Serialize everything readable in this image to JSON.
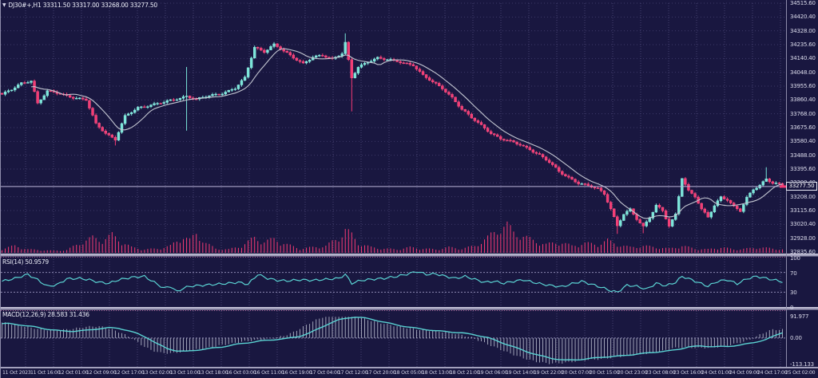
{
  "window": {
    "symbol_info": "DJ30#+,H1  33311.50 33317.00 33268.00 33277.50"
  },
  "panels": {
    "rsi": {
      "label": "RSI(14) 50.9579",
      "axis_labels": [
        "100",
        "70",
        "30",
        "0"
      ]
    },
    "macd": {
      "label": "MACD(12,26,9) 28.583 31.436",
      "axis_labels": [
        "91.977",
        "0.00",
        "-113.133"
      ]
    }
  },
  "price_axis": {
    "labels": [
      "34515.60",
      "34420.40",
      "34328.00",
      "34235.60",
      "34140.40",
      "34048.00",
      "33955.60",
      "33860.40",
      "33768.00",
      "33675.60",
      "33580.40",
      "33488.00",
      "33395.60",
      "33300.40",
      "33208.00",
      "33115.60",
      "33020.40",
      "32928.00",
      "32835.60"
    ],
    "current_price_label": "33277.50"
  },
  "time_axis": {
    "labels": [
      "11 Oct 2023",
      "11 Oct 16:00",
      "12 Oct 01:00",
      "12 Oct 09:00",
      "12 Oct 17:00",
      "13 Oct 02:00",
      "13 Oct 10:00",
      "13 Oct 18:00",
      "16 Oct 03:00",
      "16 Oct 11:00",
      "16 Oct 19:00",
      "17 Oct 04:00",
      "17 Oct 12:00",
      "17 Oct 20:00",
      "18 Oct 05:00",
      "18 Oct 13:00",
      "18 Oct 21:00",
      "19 Oct 06:00",
      "19 Oct 14:00",
      "19 Oct 22:00",
      "20 Oct 07:00",
      "20 Oct 15:00",
      "20 Oct 23:00",
      "23 Oct 08:00",
      "23 Oct 16:00",
      "24 Oct 01:00",
      "24 Oct 09:00",
      "24 Oct 17:00",
      "25 Oct 02:00"
    ]
  },
  "colors": {
    "background": "#191740",
    "grid": "#454070",
    "grid_dot": "#3d3868",
    "candle_up": "#7ae6da",
    "candle_up_stroke": "#97efe5",
    "candle_down": "#f43b74",
    "candle_down_stroke": "#ff5c8d",
    "ma_line": "#c4c7d2",
    "indicator_line": "#5ad2d2",
    "histogram": "#b0b3c6",
    "volume": "#f43b74",
    "text": "#e8e8f4",
    "current_price_line": "#bdb5d9",
    "subpanel_border_dots": "#a0568f",
    "level_dash": "#8d89b2"
  },
  "chart_data": {
    "type": "candlestick",
    "symbol": "DJ30#+",
    "timeframe": "H1",
    "title": "DJ30#+,H1",
    "ohlc_current": {
      "open": 33311.5,
      "high": 33317.0,
      "low": 33268.0,
      "close": 33277.5
    },
    "current_price": 33277.5,
    "price_range": [
      32835.6,
      34515.6
    ],
    "candle_count": 242,
    "close_keyframes": [
      [
        0,
        33900
      ],
      [
        3,
        33930
      ],
      [
        6,
        33975
      ],
      [
        9,
        33995
      ],
      [
        11,
        33840
      ],
      [
        14,
        33920
      ],
      [
        18,
        33905
      ],
      [
        22,
        33880
      ],
      [
        26,
        33860
      ],
      [
        29,
        33700
      ],
      [
        32,
        33640
      ],
      [
        35,
        33595
      ],
      [
        38,
        33750
      ],
      [
        42,
        33810
      ],
      [
        46,
        33830
      ],
      [
        50,
        33845
      ],
      [
        54,
        33870
      ],
      [
        57,
        33890
      ],
      [
        60,
        33865
      ],
      [
        64,
        33890
      ],
      [
        68,
        33910
      ],
      [
        72,
        33940
      ],
      [
        75,
        34010
      ],
      [
        78,
        34220
      ],
      [
        81,
        34190
      ],
      [
        84,
        34235
      ],
      [
        87,
        34190
      ],
      [
        90,
        34150
      ],
      [
        93,
        34110
      ],
      [
        96,
        34150
      ],
      [
        99,
        34160
      ],
      [
        102,
        34140
      ],
      [
        105,
        34180
      ],
      [
        106,
        34250
      ],
      [
        108,
        34010
      ],
      [
        110,
        34080
      ],
      [
        113,
        34120
      ],
      [
        116,
        34150
      ],
      [
        120,
        34130
      ],
      [
        124,
        34110
      ],
      [
        127,
        34100
      ],
      [
        130,
        34030
      ],
      [
        133,
        33980
      ],
      [
        136,
        33940
      ],
      [
        139,
        33880
      ],
      [
        142,
        33800
      ],
      [
        145,
        33740
      ],
      [
        148,
        33690
      ],
      [
        151,
        33640
      ],
      [
        154,
        33600
      ],
      [
        157,
        33580
      ],
      [
        160,
        33560
      ],
      [
        163,
        33530
      ],
      [
        166,
        33490
      ],
      [
        169,
        33440
      ],
      [
        172,
        33380
      ],
      [
        175,
        33340
      ],
      [
        178,
        33300
      ],
      [
        181,
        33280
      ],
      [
        184,
        33265
      ],
      [
        186,
        33230
      ],
      [
        188,
        33130
      ],
      [
        190,
        33010
      ],
      [
        192,
        33090
      ],
      [
        194,
        33120
      ],
      [
        196,
        33060
      ],
      [
        198,
        33010
      ],
      [
        200,
        33070
      ],
      [
        202,
        33150
      ],
      [
        204,
        33110
      ],
      [
        206,
        33010
      ],
      [
        208,
        33090
      ],
      [
        210,
        33340
      ],
      [
        212,
        33250
      ],
      [
        214,
        33210
      ],
      [
        216,
        33120
      ],
      [
        218,
        33070
      ],
      [
        220,
        33150
      ],
      [
        222,
        33210
      ],
      [
        224,
        33190
      ],
      [
        226,
        33140
      ],
      [
        228,
        33110
      ],
      [
        230,
        33200
      ],
      [
        232,
        33260
      ],
      [
        234,
        33290
      ],
      [
        236,
        33330
      ],
      [
        238,
        33300
      ],
      [
        240,
        33290
      ],
      [
        241,
        33277.5
      ]
    ],
    "wick_events": [
      [
        35,
        null,
        33555
      ],
      [
        57,
        34085,
        33655
      ],
      [
        106,
        34312,
        null
      ],
      [
        108,
        null,
        33785
      ],
      [
        190,
        null,
        32958
      ],
      [
        198,
        null,
        32962
      ],
      [
        236,
        33408,
        null
      ]
    ],
    "moving_average": {
      "window": 10
    },
    "volume_keyframes": [
      [
        0,
        6
      ],
      [
        4,
        10
      ],
      [
        8,
        5
      ],
      [
        12,
        4
      ],
      [
        16,
        3
      ],
      [
        20,
        4
      ],
      [
        24,
        14
      ],
      [
        28,
        22
      ],
      [
        31,
        18
      ],
      [
        34,
        26
      ],
      [
        37,
        16
      ],
      [
        40,
        8
      ],
      [
        44,
        5
      ],
      [
        48,
        6
      ],
      [
        52,
        10
      ],
      [
        56,
        24
      ],
      [
        58,
        18
      ],
      [
        60,
        28
      ],
      [
        63,
        14
      ],
      [
        66,
        6
      ],
      [
        70,
        5
      ],
      [
        74,
        10
      ],
      [
        78,
        22
      ],
      [
        81,
        16
      ],
      [
        84,
        20
      ],
      [
        88,
        12
      ],
      [
        92,
        6
      ],
      [
        96,
        8
      ],
      [
        100,
        10
      ],
      [
        104,
        22
      ],
      [
        106,
        34
      ],
      [
        108,
        26
      ],
      [
        110,
        14
      ],
      [
        114,
        8
      ],
      [
        118,
        6
      ],
      [
        122,
        5
      ],
      [
        126,
        8
      ],
      [
        130,
        6
      ],
      [
        134,
        5
      ],
      [
        138,
        8
      ],
      [
        142,
        6
      ],
      [
        146,
        10
      ],
      [
        150,
        22
      ],
      [
        153,
        34
      ],
      [
        156,
        40
      ],
      [
        158,
        30
      ],
      [
        161,
        24
      ],
      [
        164,
        18
      ],
      [
        168,
        12
      ],
      [
        172,
        16
      ],
      [
        176,
        10
      ],
      [
        180,
        14
      ],
      [
        184,
        12
      ],
      [
        187,
        18
      ],
      [
        190,
        12
      ],
      [
        194,
        8
      ],
      [
        198,
        10
      ],
      [
        202,
        8
      ],
      [
        206,
        6
      ],
      [
        210,
        10
      ],
      [
        214,
        6
      ],
      [
        218,
        5
      ],
      [
        222,
        8
      ],
      [
        226,
        5
      ],
      [
        230,
        6
      ],
      [
        234,
        8
      ],
      [
        238,
        6
      ],
      [
        241,
        5
      ]
    ],
    "rsi": {
      "period": 14,
      "current": 50.9579,
      "range": [
        0,
        100
      ],
      "levels": [
        70,
        30
      ],
      "keyframes": [
        [
          0,
          52
        ],
        [
          4,
          58
        ],
        [
          8,
          66
        ],
        [
          11,
          55
        ],
        [
          14,
          42
        ],
        [
          17,
          45
        ],
        [
          20,
          57
        ],
        [
          24,
          58
        ],
        [
          27,
          55
        ],
        [
          30,
          50
        ],
        [
          33,
          48
        ],
        [
          36,
          55
        ],
        [
          40,
          60
        ],
        [
          44,
          62
        ],
        [
          47,
          50
        ],
        [
          50,
          38
        ],
        [
          52,
          42
        ],
        [
          54,
          31
        ],
        [
          56,
          38
        ],
        [
          58,
          42
        ],
        [
          62,
          44
        ],
        [
          66,
          46
        ],
        [
          70,
          48
        ],
        [
          73,
          50
        ],
        [
          76,
          46
        ],
        [
          79,
          66
        ],
        [
          82,
          58
        ],
        [
          85,
          54
        ],
        [
          88,
          53
        ],
        [
          92,
          55
        ],
        [
          96,
          54
        ],
        [
          100,
          56
        ],
        [
          104,
          58
        ],
        [
          106,
          66
        ],
        [
          108,
          48
        ],
        [
          111,
          54
        ],
        [
          114,
          56
        ],
        [
          118,
          58
        ],
        [
          122,
          62
        ],
        [
          126,
          68
        ],
        [
          128,
          72
        ],
        [
          131,
          66
        ],
        [
          134,
          67
        ],
        [
          137,
          62
        ],
        [
          140,
          58
        ],
        [
          143,
          62
        ],
        [
          146,
          56
        ],
        [
          149,
          50
        ],
        [
          152,
          52
        ],
        [
          155,
          48
        ],
        [
          158,
          52
        ],
        [
          161,
          55
        ],
        [
          164,
          50
        ],
        [
          167,
          46
        ],
        [
          170,
          43
        ],
        [
          173,
          41
        ],
        [
          176,
          47
        ],
        [
          179,
          52
        ],
        [
          182,
          46
        ],
        [
          185,
          40
        ],
        [
          188,
          33
        ],
        [
          190,
          30
        ],
        [
          193,
          44
        ],
        [
          196,
          42
        ],
        [
          199,
          36
        ],
        [
          202,
          48
        ],
        [
          205,
          43
        ],
        [
          208,
          50
        ],
        [
          210,
          62
        ],
        [
          213,
          55
        ],
        [
          216,
          47
        ],
        [
          218,
          42
        ],
        [
          221,
          52
        ],
        [
          224,
          55
        ],
        [
          227,
          47
        ],
        [
          230,
          57
        ],
        [
          233,
          62
        ],
        [
          236,
          58
        ],
        [
          239,
          54
        ],
        [
          241,
          51
        ]
      ]
    },
    "macd": {
      "params": "12,26,9",
      "current_main": 28.583,
      "current_signal": 31.436,
      "range": [
        -113.133,
        91.977
      ],
      "keyframes": [
        [
          0,
          62
        ],
        [
          4,
          56
        ],
        [
          8,
          48
        ],
        [
          12,
          38
        ],
        [
          16,
          31
        ],
        [
          20,
          29
        ],
        [
          24,
          33
        ],
        [
          28,
          40
        ],
        [
          31,
          44
        ],
        [
          34,
          42
        ],
        [
          37,
          32
        ],
        [
          40,
          18
        ],
        [
          43,
          0
        ],
        [
          46,
          -25
        ],
        [
          49,
          -45
        ],
        [
          52,
          -55
        ],
        [
          55,
          -57
        ],
        [
          58,
          -52
        ],
        [
          62,
          -45
        ],
        [
          66,
          -38
        ],
        [
          70,
          -28
        ],
        [
          74,
          -20
        ],
        [
          78,
          -12
        ],
        [
          82,
          -7
        ],
        [
          86,
          -2
        ],
        [
          90,
          8
        ],
        [
          93,
          22
        ],
        [
          96,
          42
        ],
        [
          99,
          62
        ],
        [
          102,
          78
        ],
        [
          105,
          87
        ],
        [
          107,
          90
        ],
        [
          110,
          86
        ],
        [
          113,
          78
        ],
        [
          116,
          68
        ],
        [
          120,
          56
        ],
        [
          124,
          46
        ],
        [
          128,
          38
        ],
        [
          132,
          31
        ],
        [
          136,
          27
        ],
        [
          140,
          22
        ],
        [
          144,
          14
        ],
        [
          148,
          2
        ],
        [
          152,
          -18
        ],
        [
          156,
          -38
        ],
        [
          160,
          -58
        ],
        [
          164,
          -75
        ],
        [
          168,
          -88
        ],
        [
          172,
          -95
        ],
        [
          176,
          -93
        ],
        [
          180,
          -87
        ],
        [
          184,
          -81
        ],
        [
          188,
          -78
        ],
        [
          192,
          -72
        ],
        [
          196,
          -66
        ],
        [
          200,
          -60
        ],
        [
          204,
          -55
        ],
        [
          207,
          -48
        ],
        [
          210,
          -38
        ],
        [
          214,
          -34
        ],
        [
          218,
          -37
        ],
        [
          222,
          -36
        ],
        [
          226,
          -30
        ],
        [
          230,
          -20
        ],
        [
          234,
          -6
        ],
        [
          237,
          12
        ],
        [
          239,
          24
        ],
        [
          241,
          31.4
        ]
      ]
    }
  }
}
